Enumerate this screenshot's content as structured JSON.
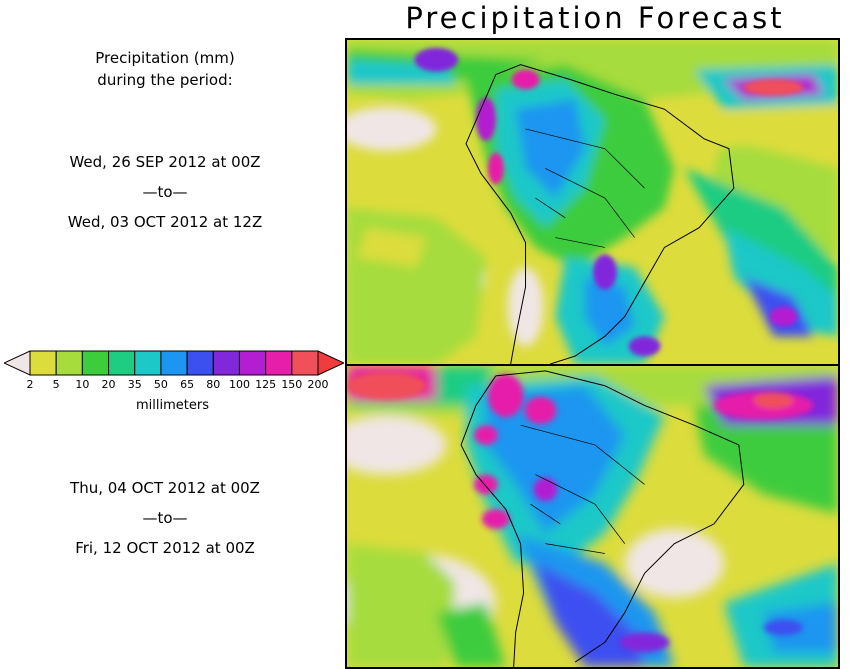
{
  "title": "Precipitation Forecast",
  "legend": {
    "heading_line1": "Precipitation (mm)",
    "heading_line2": "during the period:",
    "unit": "millimeters",
    "levels": [
      "2",
      "5",
      "10",
      "20",
      "35",
      "50",
      "65",
      "80",
      "100",
      "125",
      "150",
      "200"
    ],
    "colors": [
      "#dcdc3c",
      "#a6dc3c",
      "#3ccc3c",
      "#1ecc82",
      "#1cc8c8",
      "#1c96f0",
      "#3c50f0",
      "#8228dc",
      "#b41ed2",
      "#e61eaa",
      "#f0505a"
    ],
    "under_color": "#f0e6e6",
    "over_color": "#f03c3c"
  },
  "periods": [
    {
      "start": "Wed, 26 SEP 2012 at 00Z",
      "sep": "—to—",
      "end": "Wed, 03 OCT 2012 at 12Z"
    },
    {
      "start": "Thu, 04 OCT 2012 at 00Z",
      "sep": "—to—",
      "end": "Fri, 12 OCT 2012 at 00Z"
    }
  ],
  "map": {
    "region": "South America",
    "panels": [
      "top",
      "bottom"
    ]
  }
}
